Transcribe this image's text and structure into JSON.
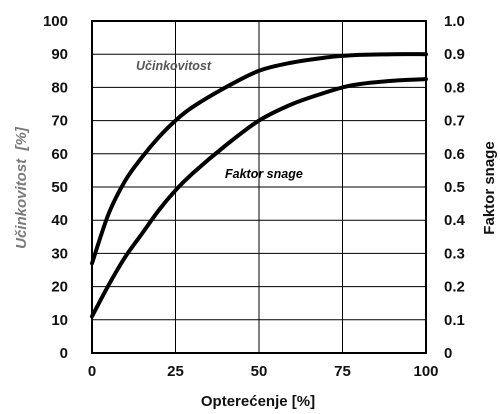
{
  "chart_data": {
    "type": "line",
    "xlabel": "Opterećenje [%]",
    "ylabel_left": "Učinkovitost  [%]",
    "ylabel_right": "Faktor snage",
    "xlim": [
      0,
      100
    ],
    "ylim_left": [
      0,
      100
    ],
    "ylim_right": [
      0,
      1.0
    ],
    "grid": true,
    "x_ticks": [
      "0",
      "25",
      "50",
      "75",
      "100"
    ],
    "y_left_ticks": [
      "0",
      "10",
      "20",
      "30",
      "40",
      "50",
      "60",
      "70",
      "80",
      "90",
      "100"
    ],
    "y_right_ticks": [
      "0",
      "0.1",
      "0.2",
      "0.3",
      "0.4",
      "0.5",
      "0.6",
      "0.7",
      "0.8",
      "0.9",
      "1.0"
    ],
    "series": [
      {
        "name": "Učinkovitost",
        "axis": "left",
        "color": "#000000",
        "label_color": "#555555",
        "x": [
          0,
          5,
          10,
          15,
          20,
          25,
          30,
          40,
          50,
          60,
          70,
          75,
          80,
          90,
          100
        ],
        "y": [
          27,
          42,
          52,
          59,
          65,
          70,
          74,
          80,
          85,
          87.5,
          89,
          89.5,
          89.8,
          90,
          90
        ]
      },
      {
        "name": "Faktor snage",
        "axis": "right",
        "color": "#000000",
        "label_color": "#000000",
        "x": [
          0,
          5,
          10,
          15,
          20,
          25,
          30,
          40,
          50,
          60,
          70,
          75,
          80,
          90,
          100
        ],
        "y": [
          0.11,
          0.205,
          0.29,
          0.36,
          0.43,
          0.49,
          0.54,
          0.625,
          0.7,
          0.75,
          0.785,
          0.8,
          0.81,
          0.82,
          0.825
        ]
      }
    ]
  }
}
